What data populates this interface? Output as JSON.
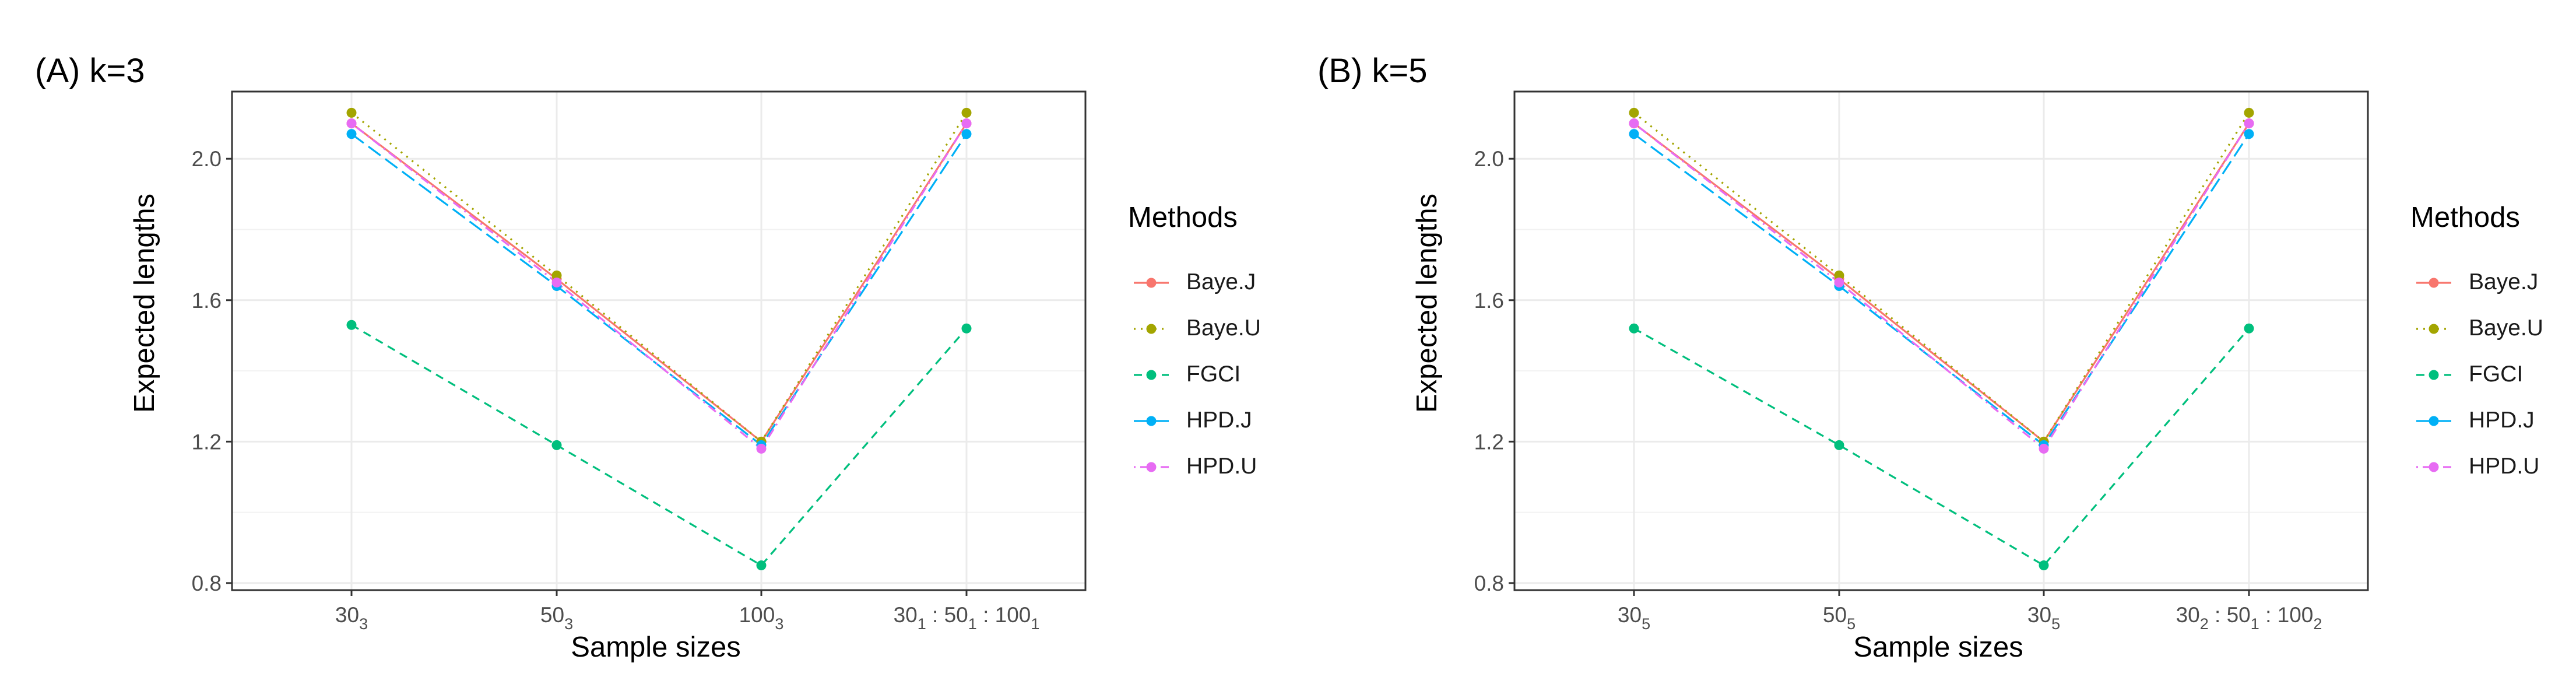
{
  "figure": {
    "methods_legend_title": "Methods",
    "x_axis_title": "Sample sizes",
    "y_axis_title": "Expected lengths"
  },
  "colors": {
    "Baye.J": "#F8766D",
    "Baye.U": "#A3A500",
    "FGCI": "#00BF7D",
    "HPD.J": "#00B0F6",
    "HPD.U": "#E76BF3"
  },
  "chart_data": [
    {
      "type": "line",
      "title": "(A) k=3",
      "xlabel": "Sample sizes",
      "ylabel": "Expected lengths",
      "ylim": [
        0.78,
        2.19
      ],
      "yticks": [
        0.8,
        1.2,
        1.6,
        2.0
      ],
      "ytick_labels": [
        "0.8",
        "1.2",
        "1.6",
        "2.0"
      ],
      "grid": true,
      "legend_position": "right",
      "categories": [
        [
          {
            "t": "30"
          },
          {
            "t": "3",
            "sub": true
          }
        ],
        [
          {
            "t": "50"
          },
          {
            "t": "3",
            "sub": true
          }
        ],
        [
          {
            "t": "100"
          },
          {
            "t": "3",
            "sub": true
          }
        ],
        [
          {
            "t": "30"
          },
          {
            "t": "1",
            "sub": true
          },
          {
            "t": " : 50"
          },
          {
            "t": "1",
            "sub": true
          },
          {
            "t": " : 100"
          },
          {
            "t": "1",
            "sub": true
          }
        ]
      ],
      "series": [
        {
          "name": "Baye.J",
          "style": "solid",
          "values": [
            2.1,
            1.66,
            1.2,
            2.1
          ]
        },
        {
          "name": "Baye.U",
          "style": "dotted",
          "values": [
            2.13,
            1.67,
            1.2,
            2.13
          ]
        },
        {
          "name": "FGCI",
          "style": "dashed",
          "values": [
            1.53,
            1.19,
            0.85,
            1.52
          ]
        },
        {
          "name": "HPD.J",
          "style": "longdash",
          "values": [
            2.07,
            1.64,
            1.19,
            2.07
          ]
        },
        {
          "name": "HPD.U",
          "style": "dotdash",
          "values": [
            2.1,
            1.65,
            1.18,
            2.1
          ]
        }
      ]
    },
    {
      "type": "line",
      "title": "(B) k=5",
      "xlabel": "Sample sizes",
      "ylabel": "Expected lengths",
      "ylim": [
        0.78,
        2.19
      ],
      "yticks": [
        0.8,
        1.2,
        1.6,
        2.0
      ],
      "ytick_labels": [
        "0.8",
        "1.2",
        "1.6",
        "2.0"
      ],
      "grid": true,
      "legend_position": "right",
      "categories": [
        [
          {
            "t": "30"
          },
          {
            "t": "5",
            "sub": true
          }
        ],
        [
          {
            "t": "50"
          },
          {
            "t": "5",
            "sub": true
          }
        ],
        [
          {
            "t": "30"
          },
          {
            "t": "5",
            "sub": true
          }
        ],
        [
          {
            "t": "30"
          },
          {
            "t": "2",
            "sub": true
          },
          {
            "t": " : 50"
          },
          {
            "t": "1",
            "sub": true
          },
          {
            "t": " : 100"
          },
          {
            "t": "2",
            "sub": true
          }
        ]
      ],
      "series": [
        {
          "name": "Baye.J",
          "style": "solid",
          "values": [
            2.1,
            1.66,
            1.2,
            2.1
          ]
        },
        {
          "name": "Baye.U",
          "style": "dotted",
          "values": [
            2.13,
            1.67,
            1.2,
            2.13
          ]
        },
        {
          "name": "FGCI",
          "style": "dashed",
          "values": [
            1.52,
            1.19,
            0.85,
            1.52
          ]
        },
        {
          "name": "HPD.J",
          "style": "longdash",
          "values": [
            2.07,
            1.64,
            1.19,
            2.07
          ]
        },
        {
          "name": "HPD.U",
          "style": "dotdash",
          "values": [
            2.1,
            1.65,
            1.18,
            2.1
          ]
        }
      ]
    }
  ]
}
